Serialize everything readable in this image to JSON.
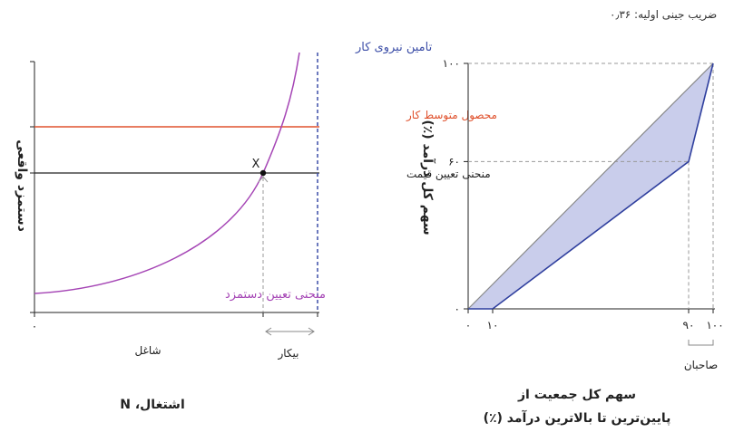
{
  "chart_data": [
    {
      "type": "line",
      "xlabel": "اشتغال، N",
      "ylabel": "دستمزد واقعی",
      "x_ticks": [
        "٠"
      ],
      "region_labels": {
        "employed": "شاغل",
        "unemployed": "بیکار"
      },
      "point_label": "X",
      "series": [
        {
          "name": "تامین نیروی کار",
          "kind": "vertical",
          "color": "#3d4fa8"
        },
        {
          "name": "محصول متوسط کار",
          "kind": "horizontal",
          "color": "#e0522e"
        },
        {
          "name": "منحنی تعیین قیمت",
          "kind": "horizontal",
          "color": "#222222"
        },
        {
          "name": "منحنی تعیین دستمزد",
          "kind": "curve",
          "color": "#a545b5"
        }
      ]
    },
    {
      "type": "line",
      "subtitle": "ضریب جینی اولیه: ۰٫۳۶",
      "xlabel_line1": "سهم کل جمعیت از",
      "xlabel_line2": "پایین‌ترین تا بالاترین درآمد (٪)",
      "ylabel": "سهم کل درآمد (٪)",
      "bracket_label": "صاحبان",
      "xlim": [
        0,
        100
      ],
      "ylim": [
        0,
        100
      ],
      "x_ticks": [
        {
          "value": 0,
          "label": "٠"
        },
        {
          "value": 10,
          "label": "١٠"
        },
        {
          "value": 90,
          "label": "٩٠"
        },
        {
          "value": 100,
          "label": "١٠٠"
        }
      ],
      "y_ticks": [
        {
          "value": 0,
          "label": "٠"
        },
        {
          "value": 60,
          "label": "۶٠"
        },
        {
          "value": 100,
          "label": "١٠٠"
        }
      ],
      "equality_line": {
        "x": [
          0,
          100
        ],
        "y": [
          0,
          100
        ],
        "color": "#888888"
      },
      "lorenz_curve": {
        "x": [
          0,
          10,
          90,
          100
        ],
        "y": [
          0,
          0,
          60,
          100
        ],
        "color": "#2f3f9e"
      },
      "fill_color": "#c9cdeb",
      "guides": [
        {
          "x": 90,
          "y": 60
        },
        {
          "x": 100,
          "y": 100
        }
      ]
    }
  ]
}
